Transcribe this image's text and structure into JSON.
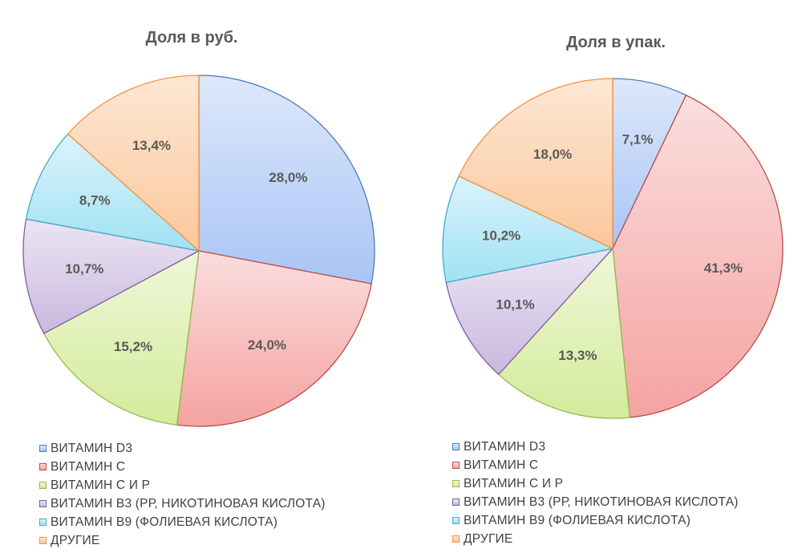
{
  "chart_data": [
    {
      "type": "pie",
      "title": "Доля в руб.",
      "categories": [
        "ВИТАМИН D3",
        "ВИТАМИН С",
        "ВИТАМИН С И Р",
        "ВИТАМИН В3 (РР, НИКОТИНОВАЯ КИСЛОТА)",
        "ВИТАМИН В9 (ФОЛИЕВАЯ КИСЛОТА)",
        "ДРУГИЕ"
      ],
      "values": [
        28.0,
        24.0,
        15.2,
        10.7,
        8.7,
        13.4
      ],
      "labels": [
        "28,0%",
        "24,0%",
        "15,2%",
        "10,7%",
        "8,7%",
        "13,4%"
      ],
      "legend_position": "bottom"
    },
    {
      "type": "pie",
      "title": "Доля в упак.",
      "categories": [
        "ВИТАМИН D3",
        "ВИТАМИН С",
        "ВИТАМИН С И Р",
        "ВИТАМИН В3 (РР, НИКОТИНОВАЯ КИСЛОТА)",
        "ВИТАМИН В9 (ФОЛИЕВАЯ КИСЛОТА)",
        "ДРУГИЕ"
      ],
      "values": [
        7.1,
        41.3,
        13.3,
        10.1,
        10.2,
        18.0
      ],
      "labels": [
        "7,1%",
        "41,3%",
        "13,3%",
        "10,1%",
        "10,2%",
        "18,0%"
      ],
      "legend_position": "bottom"
    }
  ],
  "series_colors": [
    {
      "light": "#dde8fb",
      "dark": "#a9c4f5",
      "border": "#4a7ebb"
    },
    {
      "light": "#fbdede",
      "dark": "#f4a3a1",
      "border": "#be4b48"
    },
    {
      "light": "#eff7d9",
      "dark": "#d3eb9a",
      "border": "#98b954"
    },
    {
      "light": "#ebe5f3",
      "dark": "#c9b8de",
      "border": "#7d60a0"
    },
    {
      "light": "#dcf3fa",
      "dark": "#9fe2f4",
      "border": "#46aac5"
    },
    {
      "light": "#fde7d4",
      "dark": "#fbc89b",
      "border": "#f69240"
    }
  ]
}
